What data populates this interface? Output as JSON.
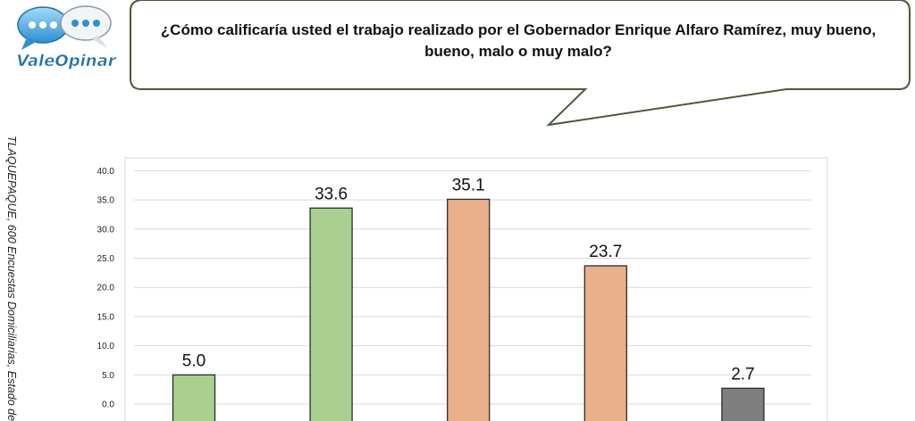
{
  "logo": {
    "text": "ValeOpinar"
  },
  "question": "¿Cómo calificaría usted el trabajo realizado por el Gobernador Enrique Alfaro Ramírez, muy bueno, bueno, malo o muy malo?",
  "side_note": "TLAQUEPAQUE, 600 Encuestas Domiciliarias, Estado de",
  "colors": {
    "positive": "#a9d08e",
    "negative": "#e9b08a",
    "neutral": "#7f7f7f",
    "bar_outline": "#2b2b2b",
    "grid": "#d9d9d9",
    "bubble_stroke": "#4a5a3a"
  },
  "chart_data": {
    "type": "bar",
    "categories": [
      "",
      "",
      "",
      "",
      ""
    ],
    "values": [
      5.0,
      33.6,
      35.1,
      23.7,
      2.7
    ],
    "bar_colors": [
      "positive",
      "positive",
      "negative",
      "negative",
      "neutral"
    ],
    "value_labels": [
      "5.0",
      "33.6",
      "35.1",
      "23.7",
      "2.7"
    ],
    "yticks": [
      "0.0",
      "5.0",
      "10.0",
      "15.0",
      "20.0",
      "25.0",
      "30.0",
      "35.0",
      "40.0"
    ],
    "ylim": [
      0,
      40
    ],
    "grid": true,
    "legend": "none",
    "title": "",
    "xlabel": "",
    "ylabel": ""
  }
}
